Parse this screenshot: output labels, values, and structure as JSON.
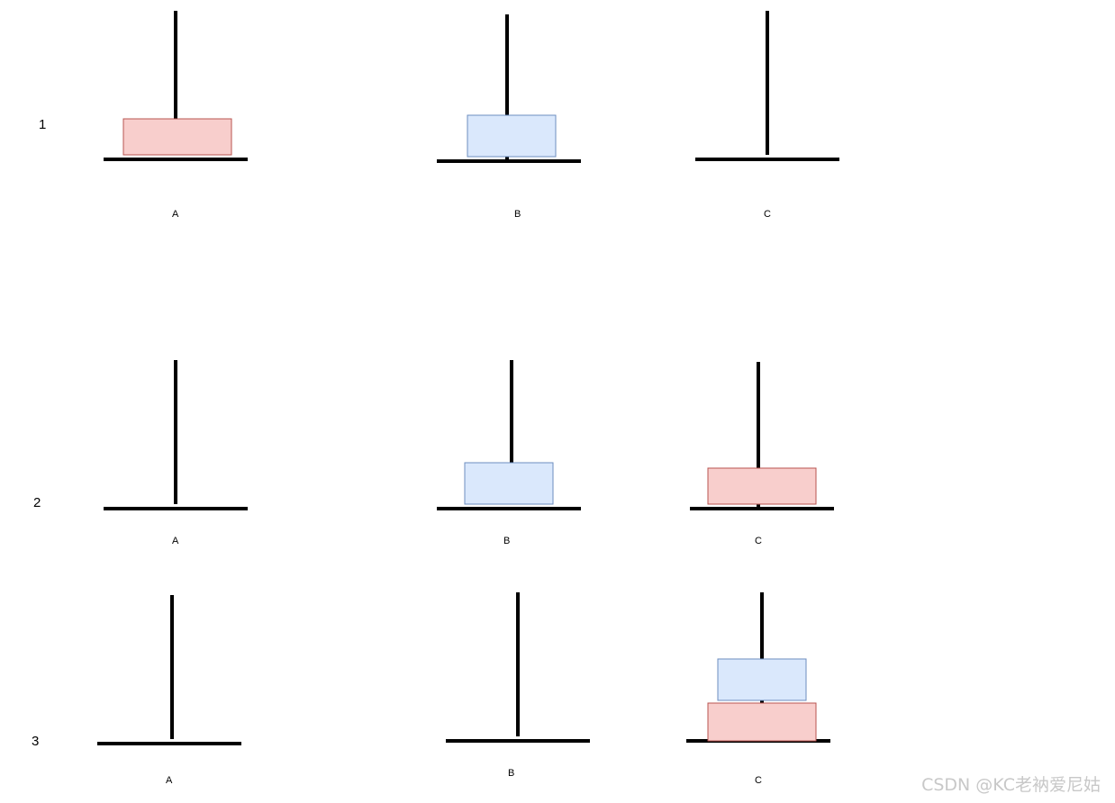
{
  "steps": [
    {
      "label": "1",
      "pegs": [
        {
          "label": "A",
          "disks": [
            "red"
          ]
        },
        {
          "label": "B",
          "disks": [
            "blue"
          ]
        },
        {
          "label": "C",
          "disks": []
        }
      ]
    },
    {
      "label": "2",
      "pegs": [
        {
          "label": "A",
          "disks": []
        },
        {
          "label": "B",
          "disks": [
            "blue"
          ]
        },
        {
          "label": "C",
          "disks": [
            "red"
          ]
        }
      ]
    },
    {
      "label": "3",
      "pegs": [
        {
          "label": "A",
          "disks": []
        },
        {
          "label": "B",
          "disks": []
        },
        {
          "label": "C",
          "disks": [
            "red",
            "blue"
          ]
        }
      ]
    }
  ],
  "colors": {
    "red_fill": "#f8cecc",
    "red_stroke": "#b85450",
    "blue_fill": "#dae8fc",
    "blue_stroke": "#6c8ebf"
  },
  "watermark": "CSDN @KC老衲爱尼姑"
}
